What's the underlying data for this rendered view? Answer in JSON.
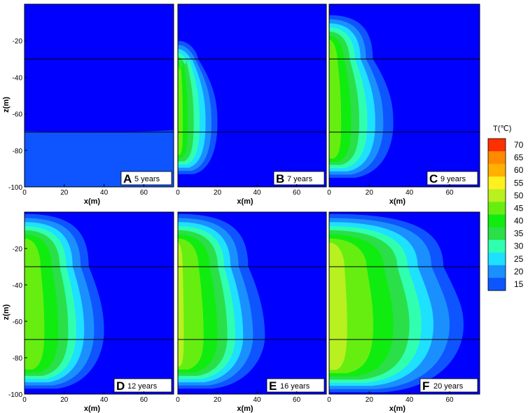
{
  "chart_data": {
    "type": "heatmap",
    "x_axis": {
      "label": "x(m)",
      "ticks": [
        "0",
        "20",
        "40",
        "60"
      ],
      "range": [
        0,
        75
      ]
    },
    "z_axis": {
      "label": "z(m)",
      "ticks": [
        "-20",
        "-40",
        "-60",
        "-80",
        "-100"
      ],
      "range": [
        -100,
        0
      ]
    },
    "reference_lines_z": [
      -30,
      -70
    ],
    "colorbar": {
      "title": "T(℃)",
      "ticks": [
        "70",
        "65",
        "60",
        "55",
        "50",
        "45",
        "40",
        "35",
        "30",
        "25",
        "20",
        "15"
      ],
      "levels": [
        15,
        20,
        25,
        30,
        35,
        40,
        45,
        50,
        55,
        60,
        65,
        70
      ],
      "colors": [
        "#0000ff",
        "#0e55ff",
        "#1a90ff",
        "#1ee0ff",
        "#30ffb0",
        "#2adf48",
        "#10ec10",
        "#66ee10",
        "#b8f020",
        "#fff020",
        "#ffb000",
        "#ff8a00",
        "#ff3000"
      ]
    },
    "panels": [
      {
        "letter": "A",
        "time": "5 years",
        "band_half_width_m": []
      },
      {
        "letter": "B",
        "time": "7 years",
        "band_half_width_m": [
          0,
          2.5,
          5,
          8,
          11,
          14,
          17,
          20
        ]
      },
      {
        "letter": "C",
        "time": "9 years",
        "band_half_width_m": [
          0,
          6,
          11,
          15,
          19,
          23,
          27,
          32
        ]
      },
      {
        "letter": "D",
        "time": "12 years",
        "band_half_width_m": [
          0,
          10,
          17,
          22,
          26,
          30,
          35,
          40
        ]
      },
      {
        "letter": "E",
        "time": "16 years",
        "band_half_width_m": [
          3,
          13,
          20,
          25,
          29,
          33,
          38,
          44
        ]
      },
      {
        "letter": "F",
        "time": "20 years",
        "band_half_width_m": [
          9,
          22,
          32,
          40,
          46,
          52,
          60,
          67
        ]
      }
    ]
  }
}
